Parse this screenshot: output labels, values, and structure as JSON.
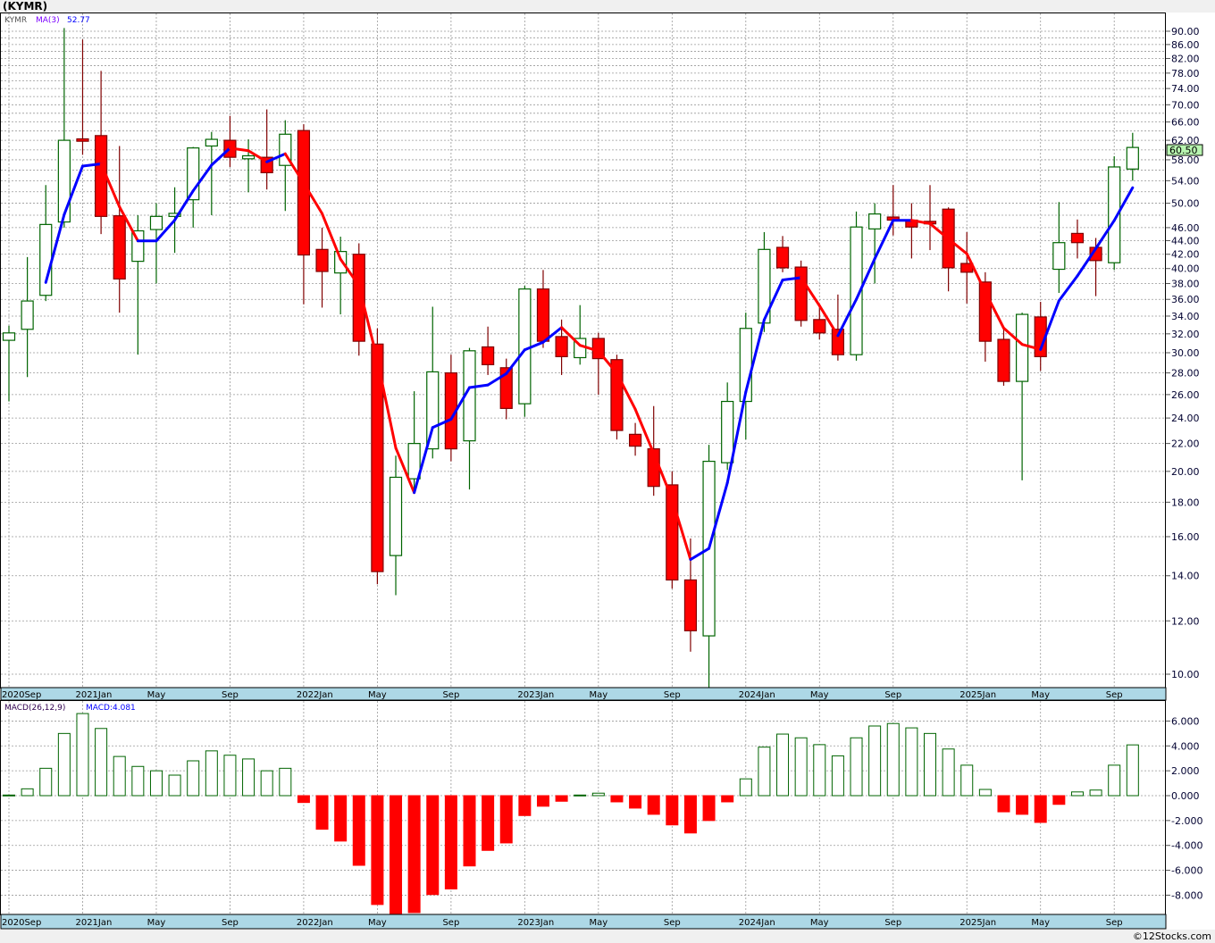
{
  "title": "(KYMR)",
  "footer": "©12Stocks.com",
  "colors": {
    "up": "#006400",
    "down_fill": "#ff0000",
    "down_stroke": "#800000",
    "ma_up": "#0000ff",
    "ma_down": "#ff0000",
    "date_bar": "#add8e6",
    "last_price_bg": "#b8f5b0"
  },
  "chart_data": [
    {
      "type": "candlestick",
      "title": "KYMR",
      "scale": "log",
      "ylim": [
        9.3,
        95
      ],
      "legend": {
        "symbol": "KYMR",
        "ma_label": "MA(3)",
        "ma_value": "52.77"
      },
      "last_price": "60.50",
      "y_ticks": [
        "10.00",
        "12.00",
        "14.00",
        "16.00",
        "18.00",
        "20.00",
        "22.00",
        "24.00",
        "26.00",
        "28.00",
        "30.00",
        "32.00",
        "34.00",
        "36.00",
        "38.00",
        "40.00",
        "42.00",
        "44.00",
        "46.00",
        "50.00",
        "54.00",
        "58.00",
        "62.00",
        "66.00",
        "70.00",
        "74.00",
        "78.00",
        "82.00",
        "86.00",
        "90.00"
      ],
      "x_ticks": [
        {
          "i": 0,
          "label": "2020Sep"
        },
        {
          "i": 4,
          "label": "2021Jan"
        },
        {
          "i": 8,
          "label": "May"
        },
        {
          "i": 12,
          "label": "Sep"
        },
        {
          "i": 16,
          "label": "2022Jan"
        },
        {
          "i": 20,
          "label": "May"
        },
        {
          "i": 24,
          "label": "Sep"
        },
        {
          "i": 28,
          "label": "2023Jan"
        },
        {
          "i": 32,
          "label": "May"
        },
        {
          "i": 36,
          "label": "Sep"
        },
        {
          "i": 40,
          "label": "2024Jan"
        },
        {
          "i": 44,
          "label": "May"
        },
        {
          "i": 48,
          "label": "Sep"
        },
        {
          "i": 52,
          "label": "2025Jan"
        },
        {
          "i": 56,
          "label": "May"
        },
        {
          "i": 60,
          "label": "Sep"
        }
      ],
      "ohlc": [
        [
          31.3,
          32.9,
          25.4,
          32.1
        ],
        [
          32.5,
          41.6,
          27.6,
          35.8
        ],
        [
          36.5,
          53.2,
          35.8,
          46.5
        ],
        [
          46.9,
          91,
          46,
          62
        ],
        [
          62.3,
          87.5,
          59,
          61.8
        ],
        [
          63,
          78.6,
          45,
          47.8
        ],
        [
          47.9,
          60.8,
          34.4,
          38.6
        ],
        [
          41,
          48,
          29.8,
          45.5
        ],
        [
          45.7,
          50,
          38,
          47.8
        ],
        [
          47.8,
          52.8,
          42.2,
          48.3
        ],
        [
          50.6,
          60.6,
          46,
          60.4
        ],
        [
          60.8,
          63.8,
          48,
          62.2
        ],
        [
          62,
          67.4,
          56.6,
          58.5
        ],
        [
          58.2,
          62.2,
          51.9,
          58.8
        ],
        [
          58.5,
          68.9,
          52.4,
          55.5
        ],
        [
          56.9,
          66.4,
          48.7,
          63.3
        ],
        [
          64.1,
          65.5,
          35.4,
          41.9
        ],
        [
          42.7,
          46,
          35,
          39.6
        ],
        [
          39.4,
          44.6,
          34.2,
          42.4
        ],
        [
          42,
          43.6,
          29.7,
          31.2
        ],
        [
          30.9,
          32.6,
          13.6,
          14.2
        ],
        [
          15,
          21.1,
          13.1,
          19.6
        ],
        [
          19.5,
          26.3,
          18.7,
          22
        ],
        [
          21.6,
          35.1,
          20.9,
          28.1
        ],
        [
          28,
          29.8,
          20.7,
          21.6
        ],
        [
          22.2,
          30.5,
          18.8,
          30.2
        ],
        [
          30.6,
          32.8,
          27.8,
          28.8
        ],
        [
          28.5,
          29.4,
          23.9,
          24.8
        ],
        [
          25.2,
          37.7,
          24.1,
          37.3
        ],
        [
          37.3,
          39.8,
          30.5,
          31.2
        ],
        [
          31.7,
          33.6,
          27.8,
          29.6
        ],
        [
          29.5,
          35.3,
          28.8,
          31.5
        ],
        [
          31.5,
          32.1,
          26,
          29.4
        ],
        [
          29.3,
          29.8,
          22.3,
          23
        ],
        [
          22.7,
          23.6,
          21.1,
          21.8
        ],
        [
          21.6,
          25,
          18.4,
          19
        ],
        [
          19.1,
          20,
          13.4,
          13.8
        ],
        [
          13.8,
          15.9,
          10.8,
          11.6
        ],
        [
          11.4,
          21.9,
          9.5,
          20.7
        ],
        [
          20.6,
          27.1,
          20.1,
          25.4
        ],
        [
          25.4,
          34.4,
          22.3,
          32.6
        ],
        [
          33.2,
          45.3,
          32.2,
          42.7
        ],
        [
          43,
          44.7,
          39.5,
          40.1
        ],
        [
          40.2,
          41.1,
          32.8,
          33.5
        ],
        [
          33.6,
          35,
          31.4,
          32.1
        ],
        [
          32.5,
          36.6,
          29.2,
          29.8
        ],
        [
          29.8,
          48.6,
          29.2,
          46.1
        ],
        [
          45.8,
          50,
          38,
          48.2
        ],
        [
          47.7,
          53.2,
          44.8,
          47.2
        ],
        [
          47.2,
          50,
          41.4,
          46.1
        ],
        [
          47,
          53.2,
          42.6,
          46.6
        ],
        [
          49,
          49.3,
          37,
          40.1
        ],
        [
          40.7,
          45.3,
          35.5,
          39.5
        ],
        [
          38.2,
          39.5,
          29.1,
          31.2
        ],
        [
          31.4,
          32.6,
          26.8,
          27.2
        ],
        [
          27.2,
          34.4,
          19.4,
          34.2
        ],
        [
          33.9,
          35.7,
          28.2,
          29.6
        ],
        [
          39.9,
          50.2,
          36.8,
          43.7
        ],
        [
          45.1,
          47.3,
          41.4,
          43.7
        ],
        [
          43,
          44.4,
          36.4,
          41.1
        ],
        [
          40.8,
          58.7,
          39.8,
          56.6
        ],
        [
          56.2,
          63.6,
          54,
          60.5
        ]
      ]
    },
    {
      "type": "bar",
      "title": "MACD(26,12,9)",
      "value_label": "MACD:4.081",
      "ylim": [
        -9.6,
        7.5
      ],
      "y_ticks": [
        "6.000",
        "4.000",
        "2.000",
        "0.000",
        "-2.000",
        "-4.000",
        "-6.000",
        "-8.000"
      ],
      "values": [
        0.05,
        0.55,
        2.2,
        5.0,
        6.6,
        5.4,
        3.15,
        2.35,
        2.0,
        1.65,
        2.8,
        3.6,
        3.25,
        2.95,
        2.0,
        2.2,
        -0.55,
        -2.7,
        -3.65,
        -5.6,
        -8.75,
        -9.6,
        -9.4,
        -7.95,
        -7.5,
        -5.65,
        -4.4,
        -3.8,
        -1.6,
        -0.85,
        -0.45,
        0.05,
        0.2,
        -0.5,
        -1.0,
        -1.5,
        -2.35,
        -3.0,
        -2.0,
        -0.5,
        1.35,
        3.9,
        4.95,
        4.65,
        4.1,
        3.2,
        4.65,
        5.6,
        5.8,
        5.45,
        5.0,
        3.75,
        2.45,
        0.5,
        -1.3,
        -1.5,
        -2.15,
        -0.7,
        0.3,
        0.45,
        2.45,
        4.081
      ]
    }
  ]
}
